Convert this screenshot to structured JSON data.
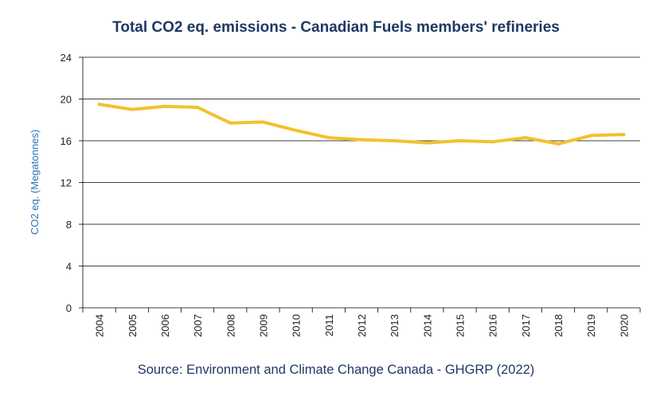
{
  "chart_data": {
    "type": "line",
    "title": "Total CO2 eq. emissions - Canadian  Fuels members' refineries",
    "ylabel": "CO2 eq.  (Megatonnes)",
    "xlabel": "",
    "source": "Source: Environment and Climate Change Canada - GHGRP (2022)",
    "categories": [
      "2004",
      "2005",
      "2006",
      "2007",
      "2008",
      "2009",
      "2010",
      "2011",
      "2012",
      "2013",
      "2014",
      "2015",
      "2016",
      "2017",
      "2018",
      "2019",
      "2020"
    ],
    "series": [
      {
        "values": [
          19.5,
          19.0,
          19.3,
          19.2,
          17.7,
          17.8,
          17.0,
          16.3,
          16.1,
          16.0,
          15.8,
          16.0,
          15.9,
          16.3,
          15.7,
          16.5,
          16.6
        ]
      }
    ],
    "ylim": [
      0,
      24
    ],
    "yticks": [
      0,
      4,
      8,
      12,
      16,
      20,
      24
    ],
    "grid": true,
    "line_color": "#f2c12e",
    "grid_color": "#000000"
  }
}
